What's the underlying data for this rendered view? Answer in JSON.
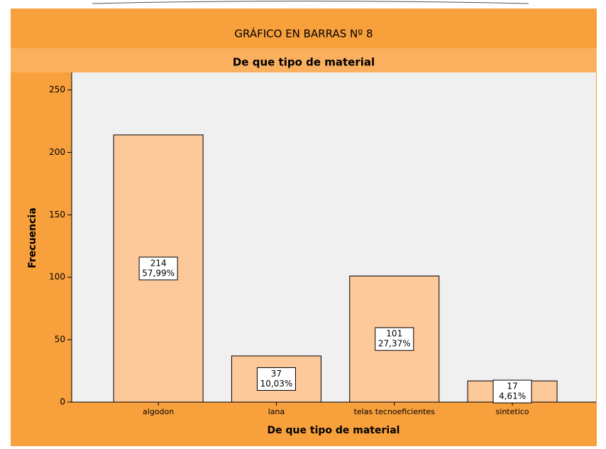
{
  "chart_data": {
    "type": "bar",
    "title": "GRÁFICO EN BARRAS Nº 8",
    "subtitle": "De que tipo de material",
    "x_label": "De que tipo de material",
    "y_label": "Frecuencia",
    "categories": [
      "algodon",
      "lana",
      "telas tecnoeficientes",
      "sintetico"
    ],
    "values": [
      214,
      37,
      101,
      17
    ],
    "percent_labels": [
      "57,99%",
      "10,03%",
      "27,37%",
      "4,61%"
    ],
    "color": "#fdc89a",
    "ylim": [
      0,
      264
    ],
    "yticks": [
      0,
      50,
      100,
      150,
      200,
      250
    ]
  }
}
